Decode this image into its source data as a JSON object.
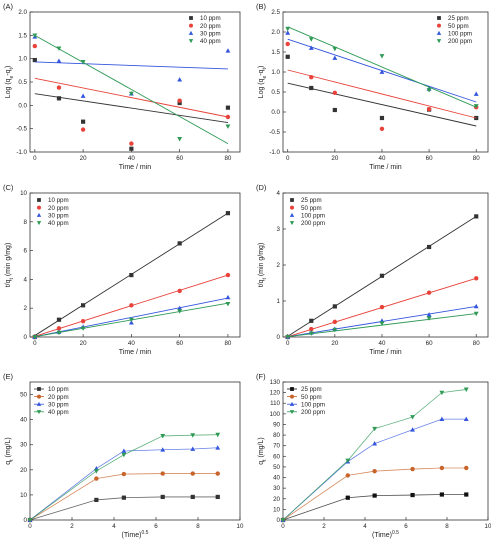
{
  "chart_data": [
    {
      "panel": "(A)",
      "type": "scatter",
      "xlabel": "Time / min",
      "ylabel": "Log (q_e-q_t)",
      "xlim": [
        -2,
        85
      ],
      "ylim": [
        -1.0,
        2.0
      ],
      "xticks": [
        0,
        20,
        40,
        60,
        80
      ],
      "yticks": [
        -1.0,
        -0.5,
        0.0,
        0.5,
        1.0,
        1.5,
        2.0
      ],
      "yticklabels": [
        "-1.0",
        "-0.5",
        "0.0",
        "0.5",
        "1.0",
        "1.5",
        "2.0"
      ],
      "legend": "top-right",
      "series": [
        {
          "name": "10 ppm",
          "color": "#333333",
          "marker": "square",
          "x": [
            0,
            10,
            20,
            40,
            60,
            80
          ],
          "y": [
            0.97,
            0.15,
            -0.35,
            -0.93,
            0.05,
            -0.05
          ],
          "fit": [
            [
              0,
              0.25
            ],
            [
              80,
              -0.37
            ]
          ]
        },
        {
          "name": "20 ppm",
          "color": "#e8423a",
          "marker": "circle",
          "x": [
            0,
            10,
            20,
            40,
            60,
            80
          ],
          "y": [
            1.27,
            0.38,
            -0.52,
            -0.82,
            0.1,
            -0.25
          ],
          "fit": [
            [
              0,
              0.58
            ],
            [
              80,
              -0.25
            ]
          ]
        },
        {
          "name": "30 ppm",
          "color": "#3355dd",
          "marker": "triangle",
          "x": [
            0,
            10,
            20,
            40,
            60,
            80
          ],
          "y": [
            1.47,
            0.95,
            0.2,
            0.25,
            0.55,
            1.17
          ],
          "fit": [
            [
              0,
              0.93
            ],
            [
              80,
              0.78
            ]
          ]
        },
        {
          "name": "40 ppm",
          "color": "#2e9a55",
          "marker": "triangle-down",
          "x": [
            0,
            10,
            20,
            40,
            60,
            80
          ],
          "y": [
            1.5,
            1.22,
            0.93,
            0.25,
            -0.72,
            -0.45
          ],
          "fit": [
            [
              0,
              1.5
            ],
            [
              80,
              -0.82
            ]
          ]
        }
      ]
    },
    {
      "panel": "(B)",
      "type": "scatter",
      "xlabel": "Time / min",
      "ylabel": "Log (q_e-q_t)",
      "xlim": [
        -2,
        85
      ],
      "ylim": [
        -1.0,
        2.5
      ],
      "xticks": [
        0,
        20,
        40,
        60,
        80
      ],
      "yticks": [
        -1.0,
        -0.5,
        0.0,
        0.5,
        1.0,
        1.5,
        2.0,
        2.5
      ],
      "yticklabels": [
        "-1.0",
        "-0.5",
        "0.0",
        "0.5",
        "1.0",
        "1.5",
        "2.0",
        "2.5"
      ],
      "legend": "top-right",
      "series": [
        {
          "name": "25 ppm",
          "color": "#333333",
          "marker": "square",
          "x": [
            0,
            10,
            20,
            40,
            60,
            80
          ],
          "y": [
            1.38,
            0.6,
            0.05,
            -0.15,
            0.06,
            -0.15
          ],
          "fit": [
            [
              0,
              0.72
            ],
            [
              80,
              -0.35
            ]
          ]
        },
        {
          "name": "50 ppm",
          "color": "#e8423a",
          "marker": "circle",
          "x": [
            0,
            10,
            20,
            40,
            60,
            80
          ],
          "y": [
            1.7,
            0.87,
            0.48,
            -0.42,
            0.07,
            0.12
          ],
          "fit": [
            [
              0,
              1.05
            ],
            [
              80,
              -0.15
            ]
          ]
        },
        {
          "name": "100 ppm",
          "color": "#3355dd",
          "marker": "triangle",
          "x": [
            0,
            10,
            20,
            40,
            60,
            80
          ],
          "y": [
            1.98,
            1.6,
            1.35,
            1.0,
            0.58,
            0.45
          ],
          "fit": [
            [
              0,
              1.82
            ],
            [
              80,
              0.25
            ]
          ]
        },
        {
          "name": "200 ppm",
          "color": "#2e9a55",
          "marker": "triangle-down",
          "x": [
            0,
            10,
            20,
            40,
            60,
            80
          ],
          "y": [
            2.08,
            1.82,
            1.58,
            1.4,
            0.55,
            0.15
          ],
          "fit": [
            [
              0,
              2.13
            ],
            [
              80,
              0.12
            ]
          ]
        }
      ]
    },
    {
      "panel": "(C)",
      "type": "scatter",
      "xlabel": "Time / min",
      "ylabel": "t/q_t (min g/mg)",
      "xlim": [
        -2,
        85
      ],
      "ylim": [
        0,
        10
      ],
      "xticks": [
        0,
        20,
        40,
        60,
        80
      ],
      "yticks": [
        0,
        2,
        4,
        6,
        8,
        10
      ],
      "yticklabels": [
        "0",
        "2",
        "4",
        "6",
        "8",
        "10"
      ],
      "legend": "top-left",
      "series": [
        {
          "name": "10 ppm",
          "color": "#333333",
          "marker": "square",
          "x": [
            0,
            10,
            20,
            40,
            60,
            80
          ],
          "y": [
            0,
            1.2,
            2.2,
            4.3,
            6.5,
            8.6
          ],
          "fit": [
            [
              0,
              0.1
            ],
            [
              80,
              8.6
            ]
          ]
        },
        {
          "name": "20 ppm",
          "color": "#e8423a",
          "marker": "circle",
          "x": [
            0,
            10,
            20,
            40,
            60,
            80
          ],
          "y": [
            0,
            0.6,
            1.1,
            2.2,
            3.2,
            4.3
          ],
          "fit": [
            [
              0,
              0.05
            ],
            [
              80,
              4.3
            ]
          ]
        },
        {
          "name": "30 ppm",
          "color": "#3355dd",
          "marker": "triangle",
          "x": [
            0,
            10,
            20,
            40,
            60,
            80
          ],
          "y": [
            0,
            0.35,
            0.7,
            1.0,
            2.0,
            2.75
          ],
          "fit": [
            [
              0,
              0.02
            ],
            [
              80,
              2.7
            ]
          ]
        },
        {
          "name": "40 ppm",
          "color": "#2e9a55",
          "marker": "triangle-down",
          "x": [
            0,
            10,
            20,
            40,
            60,
            80
          ],
          "y": [
            0,
            0.3,
            0.6,
            1.2,
            1.8,
            2.3
          ],
          "fit": [
            [
              0,
              0.02
            ],
            [
              80,
              2.35
            ]
          ]
        }
      ]
    },
    {
      "panel": "(D)",
      "type": "scatter",
      "xlabel": "Time / min",
      "ylabel": "t/q_t (min g/mg)",
      "xlim": [
        -2,
        85
      ],
      "ylim": [
        0,
        4
      ],
      "xticks": [
        0,
        20,
        40,
        60,
        80
      ],
      "yticks": [
        0,
        1,
        2,
        3,
        4
      ],
      "yticklabels": [
        "0",
        "1",
        "2",
        "3",
        "4"
      ],
      "legend": "top-left",
      "series": [
        {
          "name": "25 ppm",
          "color": "#333333",
          "marker": "square",
          "x": [
            0,
            10,
            20,
            40,
            60,
            80
          ],
          "y": [
            0,
            0.45,
            0.85,
            1.7,
            2.5,
            3.35
          ],
          "fit": [
            [
              0,
              0.02
            ],
            [
              80,
              3.35
            ]
          ]
        },
        {
          "name": "50 ppm",
          "color": "#e8423a",
          "marker": "circle",
          "x": [
            0,
            10,
            20,
            40,
            60,
            80
          ],
          "y": [
            0,
            0.22,
            0.42,
            0.83,
            1.23,
            1.63
          ],
          "fit": [
            [
              0,
              0.01
            ],
            [
              80,
              1.63
            ]
          ]
        },
        {
          "name": "100 ppm",
          "color": "#3355dd",
          "marker": "triangle",
          "x": [
            0,
            10,
            20,
            40,
            60,
            80
          ],
          "y": [
            0,
            0.12,
            0.22,
            0.45,
            0.62,
            0.85
          ],
          "fit": [
            [
              0,
              0.01
            ],
            [
              80,
              0.85
            ]
          ]
        },
        {
          "name": "200 ppm",
          "color": "#2e9a55",
          "marker": "triangle-down",
          "x": [
            0,
            10,
            20,
            40,
            60,
            80
          ],
          "y": [
            0,
            0.1,
            0.2,
            0.38,
            0.52,
            0.65
          ],
          "fit": [
            [
              0,
              0.01
            ],
            [
              80,
              0.65
            ]
          ]
        }
      ]
    },
    {
      "panel": "(E)",
      "type": "line",
      "xlabel": "(Time)^0.5",
      "ylabel": "q_t (mg/L)",
      "xlim": [
        0,
        10
      ],
      "ylim": [
        0,
        55
      ],
      "xticks": [
        0,
        2,
        4,
        6,
        8,
        10
      ],
      "yticks": [
        0,
        10,
        20,
        30,
        40,
        50
      ],
      "yticklabels": [
        "0",
        "10",
        "20",
        "30",
        "40",
        "50"
      ],
      "legend": "top-left",
      "series": [
        {
          "name": "10 ppm",
          "color": "#333333",
          "marker": "square",
          "x": [
            0,
            3.16,
            4.47,
            6.32,
            7.75,
            8.94
          ],
          "y": [
            0,
            8.0,
            8.9,
            9.2,
            9.2,
            9.2
          ]
        },
        {
          "name": "20 ppm",
          "color": "#c8642a",
          "marker": "circle",
          "x": [
            0,
            3.16,
            4.47,
            6.32,
            7.75,
            8.94
          ],
          "y": [
            0,
            16.5,
            18.3,
            18.5,
            18.5,
            18.5
          ]
        },
        {
          "name": "30 ppm",
          "color": "#3355dd",
          "marker": "triangle",
          "x": [
            0,
            3.16,
            4.47,
            6.32,
            7.75,
            8.94
          ],
          "y": [
            0,
            20.5,
            27.5,
            28.0,
            28.3,
            28.8
          ]
        },
        {
          "name": "40 ppm",
          "color": "#2e9a55",
          "marker": "triangle-down",
          "x": [
            0,
            3.16,
            4.47,
            6.32,
            7.75,
            8.94
          ],
          "y": [
            0,
            19.5,
            26.0,
            33.5,
            33.8,
            34.0
          ]
        }
      ]
    },
    {
      "panel": "(F)",
      "type": "line",
      "xlabel": "(Time)^0.5",
      "ylabel": "q_t (mg/L)",
      "xlim": [
        0,
        10
      ],
      "ylim": [
        0,
        130
      ],
      "xticks": [
        0,
        2,
        4,
        6,
        8,
        10
      ],
      "yticks": [
        0,
        10,
        20,
        30,
        40,
        50,
        60,
        70,
        80,
        90,
        100,
        110,
        120,
        130
      ],
      "yticklabels": [
        "0",
        "10",
        "20",
        "30",
        "40",
        "50",
        "60",
        "70",
        "80",
        "90",
        "100",
        "110",
        "120",
        "130"
      ],
      "legend": "top-left",
      "series": [
        {
          "name": "25 ppm",
          "color": "#111111",
          "marker": "square",
          "x": [
            0,
            3.16,
            4.47,
            6.32,
            7.75,
            8.94
          ],
          "y": [
            0,
            21,
            23,
            23.5,
            24,
            24
          ]
        },
        {
          "name": "50 ppm",
          "color": "#c8642a",
          "marker": "circle",
          "x": [
            0,
            3.16,
            4.47,
            6.32,
            7.75,
            8.94
          ],
          "y": [
            0,
            42,
            46,
            48,
            49,
            49
          ]
        },
        {
          "name": "100 ppm",
          "color": "#3355dd",
          "marker": "triangle",
          "x": [
            0,
            3.16,
            4.47,
            6.32,
            7.75,
            8.94
          ],
          "y": [
            0,
            55,
            72,
            85,
            95,
            95
          ]
        },
        {
          "name": "200 ppm",
          "color": "#2e9a55",
          "marker": "triangle-down",
          "x": [
            0,
            3.16,
            4.47,
            6.32,
            7.75,
            8.94
          ],
          "y": [
            0,
            56,
            86,
            97,
            120,
            123
          ]
        }
      ]
    }
  ]
}
